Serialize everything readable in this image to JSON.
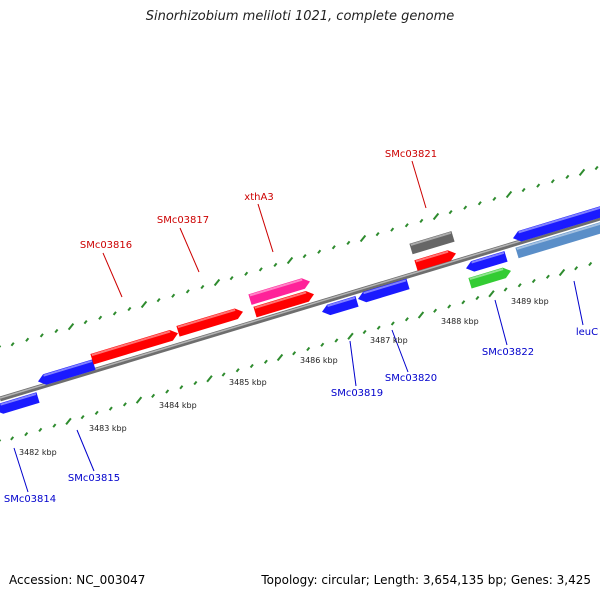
{
  "title": "Sinorhizobium meliloti 1021, complete genome",
  "footer": {
    "accession": "Accession: NC_003047",
    "summary": "Topology: circular; Length: 3,654,135 bp; Genes: 3,425"
  },
  "colors": {
    "backbone": "#888888",
    "tick": "#2e8b2e",
    "label_top": "#cc0000",
    "label_bottom": "#0000cc",
    "red_gene": "#ff0000",
    "blue_gene": "#1a1aff",
    "pink_gene": "#ff2299",
    "gray_gene": "#666666",
    "green_gene": "#33cc33",
    "steel_gene": "#5a8ec8"
  },
  "kbp_labels": [
    "3482 kbp",
    "3483 kbp",
    "3484 kbp",
    "3485 kbp",
    "3486 kbp",
    "3487 kbp",
    "3488 kbp",
    "3489 kbp"
  ],
  "top_labels": [
    "SMc03816",
    "SMc03817",
    "xthA3",
    "SMc03821"
  ],
  "bottom_labels": [
    "SMc03814",
    "SMc03815",
    "SMc03819",
    "SMc03820",
    "SMc03822",
    "leuC"
  ]
}
